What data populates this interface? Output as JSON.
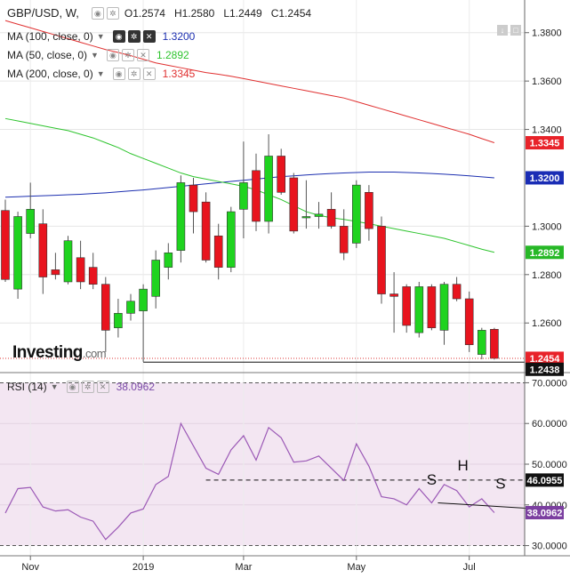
{
  "header": {
    "symbol": "GBP/USD, W,",
    "open": "O1.2574",
    "high": "H1.2580",
    "low": "L1.2449",
    "close": "C1.2454"
  },
  "indicators": [
    {
      "label": "MA (100, close, 0)",
      "value": "1.3200",
      "color": "#1c2fb0"
    },
    {
      "label": "MA (50, close, 0)",
      "value": "1.2892",
      "color": "#2ec42e"
    },
    {
      "label": "MA (200, close, 0)",
      "value": "1.3345",
      "color": "#e03030"
    }
  ],
  "rsi_header": {
    "label": "RSI (14)",
    "value": "38.0962",
    "color": "#7b4ba8"
  },
  "logo": {
    "text": "Investing",
    "suffix": ".com"
  },
  "price_axis": {
    "ticks": [
      "1.3800",
      "1.3600",
      "1.3400",
      "1.3000",
      "1.2800",
      "1.2600"
    ],
    "tick_values": [
      1.38,
      1.36,
      1.34,
      1.3,
      1.28,
      1.26
    ],
    "range": [
      1.2395,
      1.3935
    ]
  },
  "rsi_axis": {
    "ticks": [
      "70.0000",
      "60.0000",
      "50.0000",
      "40.0000",
      "30.0000"
    ],
    "tick_values": [
      70,
      60,
      50,
      40,
      30
    ],
    "range": [
      27.5,
      72.5
    ]
  },
  "price_labels": [
    {
      "text": "1.3345",
      "value": 1.3345,
      "bg": "#e8232a",
      "fg": "#ffffff"
    },
    {
      "text": "1.3200",
      "value": 1.32,
      "bg": "#1a2db5",
      "fg": "#ffffff"
    },
    {
      "text": "1.2892",
      "value": 1.2892,
      "bg": "#27b827",
      "fg": "#ffffff"
    },
    {
      "text": "1.2454",
      "value": 1.2454,
      "bg": "#e8232a",
      "fg": "#ffffff"
    },
    {
      "text": "1.2438",
      "value": 1.2438,
      "bg": "#111111",
      "fg": "#ffffff"
    }
  ],
  "rsi_labels": [
    {
      "text": "46.0955",
      "value": 46.0955,
      "bg": "#111111",
      "fg": "#ffffff"
    },
    {
      "text": "38.0962",
      "value": 38.0962,
      "bg": "#7b3fa0",
      "fg": "#ffffff"
    }
  ],
  "x_axis": {
    "labels": [
      {
        "text": "Nov",
        "index": 2
      },
      {
        "text": "2019",
        "index": 11
      },
      {
        "text": "Mar",
        "index": 19
      },
      {
        "text": "May",
        "index": 28
      },
      {
        "text": "Jul",
        "index": 37
      }
    ]
  },
  "chart_data": {
    "type": "candlestick",
    "instrument": "GBP/USD",
    "timeframe": "W",
    "candles": [
      {
        "o": 1.3065,
        "h": 1.311,
        "l": 1.277,
        "c": 1.278
      },
      {
        "o": 1.274,
        "h": 1.306,
        "l": 1.27,
        "c": 1.304
      },
      {
        "o": 1.297,
        "h": 1.318,
        "l": 1.295,
        "c": 1.307
      },
      {
        "o": 1.301,
        "h": 1.307,
        "l": 1.272,
        "c": 1.279
      },
      {
        "o": 1.282,
        "h": 1.289,
        "l": 1.278,
        "c": 1.28
      },
      {
        "o": 1.277,
        "h": 1.296,
        "l": 1.276,
        "c": 1.294
      },
      {
        "o": 1.287,
        "h": 1.294,
        "l": 1.274,
        "c": 1.277
      },
      {
        "o": 1.283,
        "h": 1.289,
        "l": 1.274,
        "c": 1.276
      },
      {
        "o": 1.276,
        "h": 1.279,
        "l": 1.248,
        "c": 1.257
      },
      {
        "o": 1.258,
        "h": 1.27,
        "l": 1.254,
        "c": 1.264
      },
      {
        "o": 1.264,
        "h": 1.272,
        "l": 1.261,
        "c": 1.269
      },
      {
        "o": 1.265,
        "h": 1.276,
        "l": 1.244,
        "c": 1.274
      },
      {
        "o": 1.271,
        "h": 1.29,
        "l": 1.266,
        "c": 1.286
      },
      {
        "o": 1.283,
        "h": 1.293,
        "l": 1.278,
        "c": 1.289
      },
      {
        "o": 1.29,
        "h": 1.321,
        "l": 1.285,
        "c": 1.318
      },
      {
        "o": 1.317,
        "h": 1.32,
        "l": 1.297,
        "c": 1.306
      },
      {
        "o": 1.31,
        "h": 1.314,
        "l": 1.285,
        "c": 1.286
      },
      {
        "o": 1.296,
        "h": 1.301,
        "l": 1.278,
        "c": 1.283
      },
      {
        "o": 1.283,
        "h": 1.308,
        "l": 1.281,
        "c": 1.306
      },
      {
        "o": 1.307,
        "h": 1.335,
        "l": 1.295,
        "c": 1.318
      },
      {
        "o": 1.323,
        "h": 1.33,
        "l": 1.298,
        "c": 1.302
      },
      {
        "o": 1.302,
        "h": 1.338,
        "l": 1.297,
        "c": 1.329
      },
      {
        "o": 1.329,
        "h": 1.332,
        "l": 1.313,
        "c": 1.314
      },
      {
        "o": 1.32,
        "h": 1.322,
        "l": 1.297,
        "c": 1.298
      },
      {
        "o": 1.304,
        "h": 1.319,
        "l": 1.299,
        "c": 1.304
      },
      {
        "o": 1.304,
        "h": 1.31,
        "l": 1.299,
        "c": 1.305
      },
      {
        "o": 1.307,
        "h": 1.314,
        "l": 1.299,
        "c": 1.3
      },
      {
        "o": 1.3,
        "h": 1.307,
        "l": 1.286,
        "c": 1.289
      },
      {
        "o": 1.293,
        "h": 1.319,
        "l": 1.291,
        "c": 1.317
      },
      {
        "o": 1.314,
        "h": 1.317,
        "l": 1.294,
        "c": 1.299
      },
      {
        "o": 1.3,
        "h": 1.304,
        "l": 1.268,
        "c": 1.272
      },
      {
        "o": 1.272,
        "h": 1.281,
        "l": 1.256,
        "c": 1.271
      },
      {
        "o": 1.275,
        "h": 1.276,
        "l": 1.256,
        "c": 1.259
      },
      {
        "o": 1.256,
        "h": 1.277,
        "l": 1.254,
        "c": 1.275
      },
      {
        "o": 1.275,
        "h": 1.276,
        "l": 1.257,
        "c": 1.258
      },
      {
        "o": 1.257,
        "h": 1.277,
        "l": 1.251,
        "c": 1.276
      },
      {
        "o": 1.276,
        "h": 1.279,
        "l": 1.269,
        "c": 1.27
      },
      {
        "o": 1.27,
        "h": 1.273,
        "l": 1.248,
        "c": 1.251
      },
      {
        "o": 1.247,
        "h": 1.258,
        "l": 1.245,
        "c": 1.257
      },
      {
        "o": 1.2574,
        "h": 1.258,
        "l": 1.2449,
        "c": 1.2454
      }
    ],
    "ma_100": [
      1.312,
      1.3122,
      1.3124,
      1.3126,
      1.3128,
      1.313,
      1.3132,
      1.3135,
      1.3138,
      1.3142,
      1.3146,
      1.315,
      1.3155,
      1.316,
      1.3165,
      1.317,
      1.3175,
      1.318,
      1.3185,
      1.319,
      1.3195,
      1.32,
      1.3205,
      1.3208,
      1.3212,
      1.3215,
      1.3218,
      1.322,
      1.3222,
      1.3224,
      1.3224,
      1.3224,
      1.3222,
      1.322,
      1.3218,
      1.3215,
      1.3212,
      1.3208,
      1.3204,
      1.32
    ],
    "ma_50": [
      1.3445,
      1.3435,
      1.3425,
      1.3415,
      1.3405,
      1.3395,
      1.338,
      1.3365,
      1.3345,
      1.3325,
      1.33,
      1.328,
      1.326,
      1.324,
      1.322,
      1.3205,
      1.3195,
      1.3185,
      1.3175,
      1.3165,
      1.315,
      1.313,
      1.311,
      1.3085,
      1.306,
      1.3045,
      1.3035,
      1.3028,
      1.302,
      1.301,
      1.3,
      1.299,
      1.298,
      1.297,
      1.296,
      1.295,
      1.2935,
      1.292,
      1.2905,
      1.2892
    ],
    "ma_200": [
      1.385,
      1.3835,
      1.382,
      1.3805,
      1.379,
      1.3775,
      1.376,
      1.3745,
      1.373,
      1.3718,
      1.3705,
      1.369,
      1.3675,
      1.3665,
      1.3655,
      1.3645,
      1.3635,
      1.3628,
      1.362,
      1.361,
      1.36,
      1.359,
      1.358,
      1.357,
      1.356,
      1.355,
      1.354,
      1.353,
      1.3515,
      1.35,
      1.3485,
      1.347,
      1.3455,
      1.344,
      1.3425,
      1.341,
      1.3395,
      1.338,
      1.3362,
      1.3345
    ],
    "rsi": [
      38.0,
      44.0,
      44.3,
      39.5,
      38.5,
      38.8,
      37.0,
      36.0,
      31.5,
      34.5,
      38.0,
      39.0,
      45.0,
      47.0,
      60.0,
      54.5,
      49.0,
      47.5,
      53.5,
      57.0,
      51.0,
      59.0,
      56.5,
      50.5,
      50.8,
      52.0,
      49.0,
      46.0,
      55.0,
      49.5,
      42.0,
      41.5,
      40.0,
      44.0,
      40.5,
      45.0,
      43.5,
      39.5,
      41.5,
      38.1
    ],
    "annotations": [
      {
        "text": "S",
        "index": 34,
        "value": 45.0
      },
      {
        "text": "H",
        "index": 36.5,
        "value": 48.5
      },
      {
        "text": "S",
        "index": 39.5,
        "value": 44.0
      }
    ],
    "support_line": {
      "value": 1.2438,
      "from_index": 11,
      "to_index": 40
    },
    "rsi_level_line": {
      "value": 46.0955,
      "from_index": 16,
      "to_index": 41
    },
    "neckline": {
      "from": [
        34.5,
        40.5
      ],
      "to": [
        41.5,
        39.2
      ]
    }
  }
}
